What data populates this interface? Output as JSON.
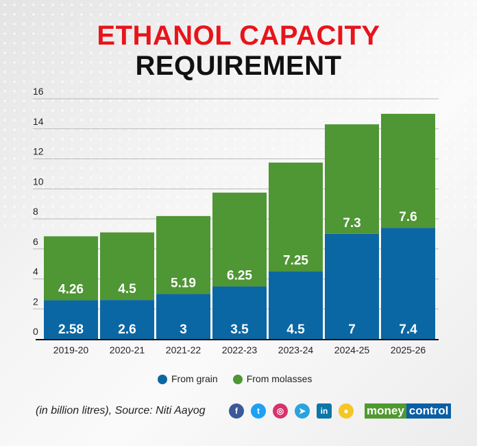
{
  "title_line1": "ETHANOL CAPACITY",
  "title_line2": "REQUIREMENT",
  "source": "(in billion litres), Source: Niti Aayog",
  "logo": {
    "part1": "money",
    "part2": "control"
  },
  "social_icons": [
    "facebook-icon",
    "twitter-icon",
    "instagram-icon",
    "telegram-icon",
    "linkedin-icon",
    "koo-icon"
  ],
  "colors": {
    "grain": "#0b67a3",
    "molasses": "#4f9634",
    "title_red": "#e8141b"
  },
  "chart_data": {
    "type": "bar",
    "stacked": true,
    "categories": [
      "2019-20",
      "2020-21",
      "2021-22",
      "2022-23",
      "2023-24",
      "2024-25",
      "2025-26"
    ],
    "series": [
      {
        "name": "From grain",
        "values": [
          2.58,
          2.6,
          3,
          3.5,
          4.5,
          7,
          7.4
        ],
        "labels": [
          "2.58",
          "2.6",
          "3",
          "3.5",
          "4.5",
          "7",
          "7.4"
        ]
      },
      {
        "name": "From molasses",
        "values": [
          4.26,
          4.5,
          5.19,
          6.25,
          7.25,
          7.3,
          7.6
        ],
        "labels": [
          "4.26",
          "4.5",
          "5.19",
          "6.25",
          "7.25",
          "7.3",
          "7.6"
        ]
      }
    ],
    "ylim": [
      0,
      16
    ],
    "yticks": [
      0,
      2,
      4,
      6,
      8,
      10,
      12,
      14,
      16
    ],
    "grid": true,
    "legend": "bottom"
  }
}
